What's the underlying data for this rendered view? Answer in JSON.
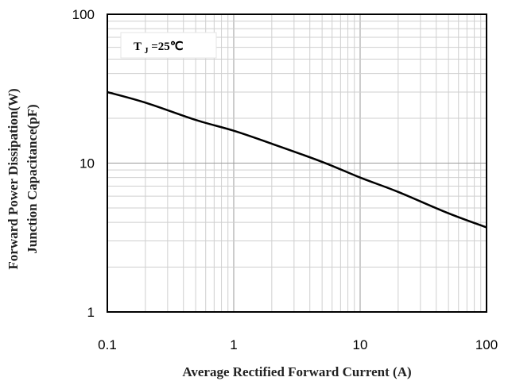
{
  "chart_data": {
    "type": "line",
    "x_scale": "log",
    "y_scale": "log",
    "xlim": [
      0.1,
      100
    ],
    "ylim": [
      1,
      100
    ],
    "xlabel": "Average Rectified Forward Current (A)",
    "ylabel": [
      "Forward Power Dissipation(W)",
      "Junction Capacitance(pF)"
    ],
    "x_ticks": [
      {
        "value": 0.1,
        "label": "0.1"
      },
      {
        "value": 1,
        "label": "1"
      },
      {
        "value": 10,
        "label": "10"
      },
      {
        "value": 100,
        "label": "100"
      }
    ],
    "y_ticks": [
      {
        "value": 1,
        "label": "1"
      },
      {
        "value": 10,
        "label": "10"
      },
      {
        "value": 100,
        "label": "100"
      }
    ],
    "annotation": {
      "main": "T",
      "sub": "J",
      "rest": "=25℃"
    },
    "grid": true,
    "series": [
      {
        "color": "#000000",
        "x": [
          0.1,
          0.2,
          0.5,
          1,
          2,
          5,
          10,
          20,
          50,
          100
        ],
        "y": [
          30,
          25.5,
          19.5,
          16.5,
          13.5,
          10.2,
          8,
          6.4,
          4.6,
          3.7
        ]
      }
    ]
  }
}
